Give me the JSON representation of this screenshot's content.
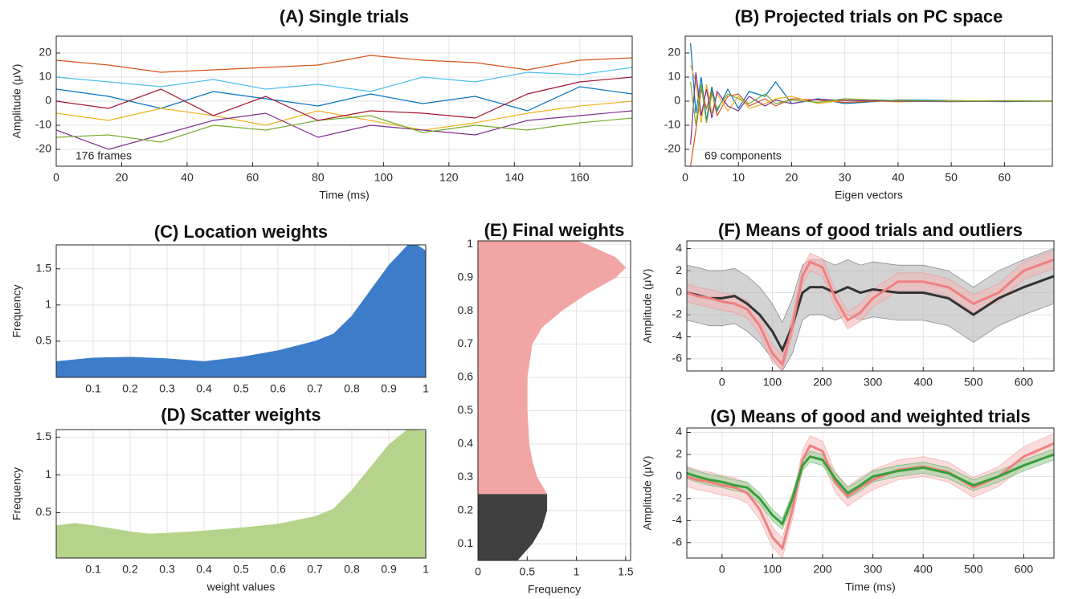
{
  "chart_data": [
    {
      "type": "line",
      "title": "(A) Single trials",
      "xlabel": "Time (ms)",
      "ylabel": "Amplitude (μV)",
      "annotation": "176 frames",
      "grid": true,
      "xlim": [
        0,
        176
      ],
      "xticks": [
        0,
        20,
        40,
        60,
        80,
        100,
        120,
        140,
        160
      ],
      "ylim": [
        -27,
        27
      ],
      "yticks": [
        -20,
        -10,
        0,
        10,
        20
      ],
      "x": [
        0,
        16,
        32,
        48,
        64,
        80,
        96,
        112,
        128,
        144,
        160,
        176
      ],
      "series": [
        {
          "color": "#0072bd",
          "values": [
            5,
            2,
            -3,
            4,
            1,
            -2,
            3,
            -1,
            2,
            -4,
            6,
            3
          ]
        },
        {
          "color": "#d95319",
          "values": [
            17,
            15,
            12,
            13,
            14,
            15,
            19,
            17,
            16,
            13,
            17,
            18
          ]
        },
        {
          "color": "#edb120",
          "values": [
            -5,
            -8,
            -3,
            -6,
            -10,
            -4,
            -8,
            -12,
            -9,
            -5,
            -2,
            0
          ]
        },
        {
          "color": "#7e2f8e",
          "values": [
            -12,
            -20,
            -14,
            -8,
            -5,
            -15,
            -10,
            -12,
            -14,
            -8,
            -6,
            -4
          ]
        },
        {
          "color": "#77ac30",
          "values": [
            -15,
            -14,
            -17,
            -10,
            -12,
            -8,
            -6,
            -13,
            -10,
            -12,
            -9,
            -7
          ]
        },
        {
          "color": "#4dbeee",
          "values": [
            10,
            8,
            6,
            9,
            5,
            7,
            4,
            10,
            8,
            12,
            11,
            14
          ]
        },
        {
          "color": "#a2142f",
          "values": [
            0,
            -3,
            5,
            -6,
            2,
            -8,
            -4,
            -5,
            -7,
            3,
            8,
            10
          ]
        }
      ]
    },
    {
      "type": "line",
      "title": "(B) Projected trials on PC space",
      "xlabel": "Eigen vectors",
      "annotation": "69 components",
      "grid": true,
      "xlim": [
        0,
        69
      ],
      "xticks": [
        0,
        10,
        20,
        30,
        40,
        50,
        60
      ],
      "ylim": [
        -27,
        27
      ],
      "yticks": [
        -20,
        -10,
        0,
        10,
        20
      ],
      "x": [
        1,
        2,
        3,
        4,
        5,
        6,
        8,
        10,
        12,
        15,
        17,
        20,
        25,
        30,
        40,
        50,
        60,
        69
      ],
      "series": [
        {
          "color": "#0072bd",
          "values": [
            24,
            -5,
            10,
            -8,
            6,
            -4,
            5,
            -3,
            4,
            2,
            8,
            -1,
            1,
            -1,
            0.5,
            0.3,
            -0.2,
            0
          ]
        },
        {
          "color": "#d95319",
          "values": [
            -27,
            -12,
            5,
            -3,
            4,
            -6,
            2,
            3,
            -2,
            1,
            -2,
            1,
            0.5,
            -0.5,
            0.3,
            0,
            0.2,
            0
          ]
        },
        {
          "color": "#edb120",
          "values": [
            15,
            8,
            -9,
            7,
            -5,
            3,
            -4,
            2,
            -3,
            -1,
            1,
            2,
            -1,
            0.5,
            -0.3,
            0.2,
            0,
            0
          ]
        },
        {
          "color": "#7e2f8e",
          "values": [
            -18,
            12,
            -6,
            5,
            -7,
            4,
            -2,
            -4,
            2,
            -2,
            0.5,
            -1,
            0.8,
            0.3,
            0,
            -0.2,
            0,
            0
          ]
        },
        {
          "color": "#77ac30",
          "values": [
            8,
            -10,
            7,
            -9,
            3,
            -3,
            3,
            1,
            -1,
            3,
            -1,
            0.5,
            -0.5,
            1,
            0.2,
            0,
            0.1,
            0
          ]
        }
      ]
    },
    {
      "type": "area",
      "title": "(C) Location weights",
      "ylabel": "Frequency",
      "grid": true,
      "xlim": [
        0,
        1
      ],
      "xticks": [
        0.1,
        0.2,
        0.3,
        0.4,
        0.5,
        0.6,
        0.7,
        0.8,
        0.9,
        1
      ],
      "ylim": [
        0,
        1.83
      ],
      "yticks": [
        0.5,
        1,
        1.5
      ],
      "x": [
        0,
        0.1,
        0.2,
        0.3,
        0.4,
        0.5,
        0.6,
        0.7,
        0.75,
        0.8,
        0.85,
        0.9,
        0.95,
        0.97,
        1
      ],
      "series": [
        {
          "color": "#3d7cc9",
          "values": [
            0.22,
            0.27,
            0.28,
            0.26,
            0.22,
            0.28,
            0.37,
            0.5,
            0.6,
            0.85,
            1.2,
            1.55,
            1.82,
            1.85,
            1.75
          ]
        }
      ]
    },
    {
      "type": "area",
      "title": "(D) Scatter weights",
      "xlabel": "weight values",
      "ylabel": "Frequency",
      "grid": true,
      "xlim": [
        0,
        1
      ],
      "xticks": [
        0.1,
        0.2,
        0.3,
        0.4,
        0.5,
        0.6,
        0.7,
        0.8,
        0.9,
        1
      ],
      "ylim": [
        -0.1,
        1.6
      ],
      "yticks": [
        0.5,
        1,
        1.5
      ],
      "x": [
        0,
        0.05,
        0.1,
        0.2,
        0.25,
        0.3,
        0.4,
        0.5,
        0.6,
        0.7,
        0.75,
        0.8,
        0.85,
        0.9,
        0.95,
        1
      ],
      "series": [
        {
          "color": "#b5d38a",
          "values": [
            0.33,
            0.36,
            0.33,
            0.25,
            0.22,
            0.23,
            0.26,
            0.3,
            0.35,
            0.45,
            0.55,
            0.8,
            1.1,
            1.4,
            1.6,
            1.58
          ]
        }
      ]
    },
    {
      "type": "area",
      "orientation": "horizontal",
      "title": "(E) Final weights",
      "xlabel": "Frequency",
      "grid": true,
      "xlim": [
        0,
        1.55
      ],
      "xticks": [
        0,
        0.5,
        1,
        1.5
      ],
      "ylim": [
        0.05,
        1.01
      ],
      "yticks": [
        0.1,
        0.2,
        0.3,
        0.4,
        0.5,
        0.6,
        0.7,
        0.8,
        0.9,
        1
      ],
      "series": [
        {
          "color": "#404040",
          "x": [
            0.05,
            0.1,
            0.15,
            0.2,
            0.25
          ],
          "values": [
            0.4,
            0.55,
            0.65,
            0.7,
            0.7
          ]
        },
        {
          "color": "#f2a5a5",
          "x": [
            0.25,
            0.3,
            0.35,
            0.4,
            0.5,
            0.6,
            0.7,
            0.75,
            0.8,
            0.85,
            0.9,
            0.93,
            0.96,
            1,
            1.01
          ],
          "values": [
            0.7,
            0.6,
            0.55,
            0.52,
            0.5,
            0.5,
            0.55,
            0.65,
            0.85,
            1.1,
            1.4,
            1.5,
            1.4,
            1.1,
            1.0
          ]
        }
      ]
    },
    {
      "type": "band",
      "title": "(F) Means of good trials and outliers",
      "ylabel": "Amplitude (μV)",
      "grid": true,
      "xlim": [
        -70,
        660
      ],
      "xticks": [
        0,
        100,
        200,
        300,
        400,
        500,
        600
      ],
      "ylim": [
        -7.1,
        4.7
      ],
      "yticks": [
        -6,
        -4,
        -2,
        0,
        2,
        4
      ],
      "x": [
        -70,
        -50,
        -25,
        0,
        25,
        50,
        75,
        100,
        120,
        140,
        160,
        175,
        200,
        225,
        250,
        275,
        300,
        350,
        400,
        450,
        500,
        550,
        600,
        660
      ],
      "series": [
        {
          "color": "#333333",
          "band_color": "#b5b5b5",
          "values": [
            0,
            -0.2,
            -0.5,
            -0.5,
            -0.3,
            -1,
            -2,
            -3.5,
            -5.2,
            -3,
            0,
            0.5,
            0.5,
            0,
            0.5,
            0,
            0.3,
            0,
            0,
            -0.5,
            -2,
            -0.5,
            0.5,
            1.5
          ],
          "lower": [
            -2.5,
            -2.7,
            -3,
            -3,
            -2.8,
            -3.5,
            -4.5,
            -6,
            -7.1,
            -5.5,
            -2.5,
            -2,
            -2,
            -2.5,
            -2,
            -2.5,
            -2.2,
            -2.5,
            -2.5,
            -3,
            -4.5,
            -3,
            -2,
            -1
          ],
          "upper": [
            2.5,
            2.3,
            2,
            2,
            2.2,
            1.5,
            0.5,
            -1,
            -2.7,
            -0.5,
            2.5,
            3,
            3,
            2.5,
            3,
            2.5,
            2.8,
            2.5,
            2.5,
            2,
            0.5,
            2,
            3,
            4
          ]
        },
        {
          "color": "#f08080",
          "band_color": "#f4b8b8",
          "values": [
            0,
            -0.3,
            -0.5,
            -0.8,
            -1,
            -1.5,
            -3,
            -5.5,
            -6.5,
            -3,
            1.5,
            2.8,
            2.3,
            -0.5,
            -2.5,
            -1.8,
            -0.5,
            1,
            1,
            0.5,
            -1,
            0,
            2,
            3
          ],
          "lower": [
            -0.8,
            -1.1,
            -1.3,
            -1.6,
            -1.8,
            -2.3,
            -3.8,
            -6.3,
            -7.1,
            -3.8,
            0.7,
            2,
            1.5,
            -1.3,
            -3.3,
            -2.6,
            -1.3,
            0.2,
            0.2,
            -0.3,
            -1.8,
            -0.8,
            1.2,
            2.2
          ],
          "upper": [
            0.8,
            0.5,
            0.3,
            0,
            -0.2,
            -0.7,
            -2.2,
            -4.7,
            -5.7,
            -2.2,
            2.3,
            3.6,
            3.1,
            0.3,
            -1.7,
            -1,
            0.3,
            1.8,
            1.8,
            1.3,
            -0.2,
            0.8,
            2.8,
            3.8
          ]
        }
      ]
    },
    {
      "type": "band",
      "title": "(G) Means of good and weighted trials",
      "xlabel": "Time (ms)",
      "ylabel": "Amplitude (μV)",
      "grid": true,
      "xlim": [
        -70,
        660
      ],
      "xticks": [
        0,
        100,
        200,
        300,
        400,
        500,
        600
      ],
      "ylim": [
        -7.4,
        4.4
      ],
      "yticks": [
        -6,
        -4,
        -2,
        0,
        2,
        4
      ],
      "x": [
        -70,
        -50,
        -25,
        0,
        25,
        50,
        75,
        100,
        120,
        140,
        160,
        175,
        200,
        225,
        250,
        275,
        300,
        350,
        400,
        450,
        500,
        550,
        600,
        660
      ],
      "series": [
        {
          "color": "#f08080",
          "band_color": "#f7c4c4",
          "values": [
            0,
            -0.3,
            -0.5,
            -0.8,
            -1,
            -1.5,
            -3,
            -5.5,
            -6.5,
            -3,
            1.5,
            2.8,
            2.3,
            -0.5,
            -1.8,
            -1,
            -0.3,
            0.6,
            0.9,
            0.4,
            -1,
            0,
            1.8,
            3
          ],
          "lower": [
            -0.9,
            -1.2,
            -1.4,
            -1.7,
            -1.9,
            -2.4,
            -3.9,
            -6.4,
            -7.4,
            -3.9,
            0.6,
            1.9,
            1.4,
            -1.4,
            -2.7,
            -1.9,
            -1.2,
            -0.3,
            0,
            -0.5,
            -1.9,
            -0.9,
            0.9,
            2.1
          ],
          "upper": [
            0.9,
            0.6,
            0.4,
            0.1,
            -0.1,
            -0.6,
            -2.1,
            -4.6,
            -5.6,
            -2.1,
            2.4,
            3.7,
            3.2,
            0.4,
            -0.9,
            -0.1,
            0.6,
            1.5,
            1.8,
            1.3,
            -0.1,
            0.9,
            2.7,
            3.9
          ]
        },
        {
          "color": "#3a9e3a",
          "band_color": "#9fd19f",
          "values": [
            0.3,
            0,
            -0.3,
            -0.5,
            -0.8,
            -1,
            -2,
            -3.5,
            -4.3,
            -2,
            1,
            1.8,
            1.5,
            -0.2,
            -1.5,
            -0.8,
            0,
            0.5,
            0.8,
            0.3,
            -0.8,
            0,
            1,
            2
          ],
          "lower": [
            -0.2,
            -0.5,
            -0.8,
            -1,
            -1.3,
            -1.5,
            -2.5,
            -4,
            -4.8,
            -2.5,
            0.5,
            1.3,
            1,
            -0.7,
            -2,
            -1.3,
            -0.5,
            0,
            0.3,
            -0.2,
            -1.3,
            -0.5,
            0.5,
            1.5
          ],
          "upper": [
            0.8,
            0.5,
            0.2,
            0,
            -0.3,
            -0.5,
            -1.5,
            -3,
            -3.8,
            -1.5,
            1.5,
            2.3,
            2,
            0.3,
            -1,
            -0.3,
            0.5,
            1,
            1.3,
            0.8,
            -0.3,
            0.5,
            1.5,
            2.5
          ]
        }
      ]
    }
  ]
}
